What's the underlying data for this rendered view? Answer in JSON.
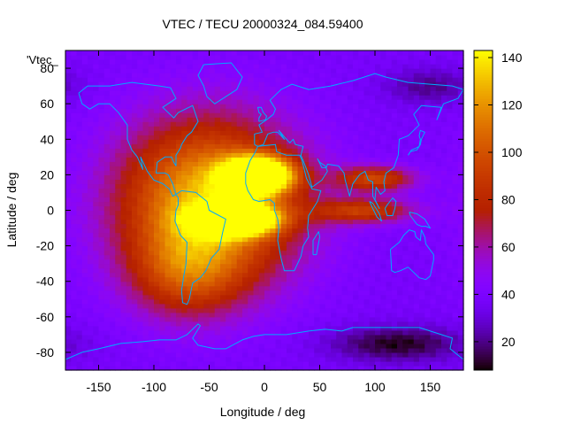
{
  "chart_data": {
    "type": "heatmap",
    "title": "VTEC / TECU 20000324_084.59400",
    "xlabel": "Longitude / deg",
    "ylabel": "Latitude / deg",
    "key_label": "'Vtec_",
    "xlim": [
      -180,
      180
    ],
    "ylim": [
      -90,
      90
    ],
    "xticks": [
      -150,
      -100,
      -50,
      0,
      50,
      100,
      150
    ],
    "yticks": [
      -80,
      -60,
      -40,
      -20,
      0,
      20,
      40,
      60,
      80
    ],
    "colorbar": {
      "range": [
        8,
        143
      ],
      "ticks": [
        20,
        40,
        60,
        80,
        100,
        120,
        140
      ],
      "palette": "black-purple-red-orange-yellow"
    },
    "grid": false,
    "background_level_tecu": 38,
    "features": [
      {
        "name": "subsolar crest north",
        "lon": -5,
        "lat": 20,
        "peak_tecu": 140,
        "lon_width": 30,
        "lat_width": 10
      },
      {
        "name": "equatorial crest south",
        "lon": -25,
        "lat": -5,
        "peak_tecu": 138,
        "lon_width": 35,
        "lat_width": 8
      },
      {
        "name": "broad dayside bulge",
        "lon": -50,
        "lat": 5,
        "peak_tecu": 95,
        "lon_width": 80,
        "lat_width": 45
      },
      {
        "name": "southern extension",
        "lon": -70,
        "lat": -35,
        "peak_tecu": 40,
        "lon_width": 50,
        "lat_width": 25
      },
      {
        "name": "indian ocean anomaly north",
        "lon": 100,
        "lat": 18,
        "peak_tecu": 55,
        "lon_width": 35,
        "lat_width": 7
      },
      {
        "name": "indian ocean anomaly south",
        "lon": 90,
        "lat": 0,
        "peak_tecu": 50,
        "lon_width": 45,
        "lat_width": 7
      },
      {
        "name": "antarctic trough",
        "lon": 120,
        "lat": -75,
        "peak_tecu": -28,
        "lon_width": 60,
        "lat_width": 10
      },
      {
        "name": "arctic trough",
        "lon": 150,
        "lat": 70,
        "peak_tecu": -18,
        "lon_width": 40,
        "lat_width": 10
      }
    ],
    "coastlines": [
      {
        "name": "North America",
        "lonlat": [
          [
            -168,
            66
          ],
          [
            -160,
            70
          ],
          [
            -140,
            70
          ],
          [
            -120,
            72
          ],
          [
            -95,
            70
          ],
          [
            -85,
            69
          ],
          [
            -80,
            63
          ],
          [
            -92,
            58
          ],
          [
            -82,
            52
          ],
          [
            -78,
            55
          ],
          [
            -65,
            59
          ],
          [
            -60,
            50
          ],
          [
            -66,
            44
          ],
          [
            -70,
            42
          ],
          [
            -75,
            37
          ],
          [
            -76,
            35
          ],
          [
            -80,
            31
          ],
          [
            -80,
            25
          ],
          [
            -82,
            27
          ],
          [
            -84,
            30
          ],
          [
            -90,
            30
          ],
          [
            -97,
            27
          ],
          [
            -98,
            21
          ],
          [
            -90,
            21
          ],
          [
            -87,
            20
          ],
          [
            -83,
            15
          ],
          [
            -80,
            9
          ],
          [
            -83,
            8
          ],
          [
            -86,
            12
          ],
          [
            -92,
            15
          ],
          [
            -100,
            17
          ],
          [
            -106,
            22
          ],
          [
            -112,
            30
          ],
          [
            -110,
            23
          ],
          [
            -115,
            30
          ],
          [
            -120,
            34
          ],
          [
            -124,
            40
          ],
          [
            -124,
            48
          ],
          [
            -132,
            55
          ],
          [
            -140,
            60
          ],
          [
            -150,
            60
          ],
          [
            -158,
            57
          ],
          [
            -165,
            60
          ],
          [
            -168,
            66
          ]
        ]
      },
      {
        "name": "Greenland",
        "lonlat": [
          [
            -55,
            82
          ],
          [
            -30,
            83
          ],
          [
            -20,
            75
          ],
          [
            -25,
            68
          ],
          [
            -40,
            62
          ],
          [
            -45,
            60
          ],
          [
            -52,
            64
          ],
          [
            -55,
            70
          ],
          [
            -60,
            76
          ],
          [
            -55,
            82
          ]
        ]
      },
      {
        "name": "South America",
        "lonlat": [
          [
            -80,
            9
          ],
          [
            -75,
            11
          ],
          [
            -62,
            10
          ],
          [
            -52,
            5
          ],
          [
            -50,
            0
          ],
          [
            -44,
            -2
          ],
          [
            -35,
            -5
          ],
          [
            -38,
            -13
          ],
          [
            -41,
            -22
          ],
          [
            -48,
            -27
          ],
          [
            -53,
            -34
          ],
          [
            -58,
            -38
          ],
          [
            -65,
            -41
          ],
          [
            -68,
            -50
          ],
          [
            -70,
            -53
          ],
          [
            -74,
            -52
          ],
          [
            -75,
            -45
          ],
          [
            -73,
            -37
          ],
          [
            -71,
            -30
          ],
          [
            -70,
            -18
          ],
          [
            -76,
            -14
          ],
          [
            -81,
            -6
          ],
          [
            -80,
            0
          ],
          [
            -78,
            3
          ],
          [
            -78,
            7
          ],
          [
            -80,
            9
          ]
        ]
      },
      {
        "name": "Eurasia",
        "lonlat": [
          [
            -9,
            37
          ],
          [
            -9,
            43
          ],
          [
            -2,
            44
          ],
          [
            -5,
            48
          ],
          [
            2,
            51
          ],
          [
            8,
            54
          ],
          [
            10,
            57
          ],
          [
            5,
            62
          ],
          [
            15,
            68
          ],
          [
            25,
            71
          ],
          [
            40,
            68
          ],
          [
            60,
            70
          ],
          [
            80,
            73
          ],
          [
            100,
            77
          ],
          [
            110,
            75
          ],
          [
            130,
            72
          ],
          [
            150,
            71
          ],
          [
            170,
            70
          ],
          [
            180,
            68
          ],
          [
            175,
            63
          ],
          [
            162,
            60
          ],
          [
            156,
            51
          ],
          [
            160,
            58
          ],
          [
            142,
            59
          ],
          [
            135,
            54
          ],
          [
            140,
            48
          ],
          [
            130,
            42
          ],
          [
            122,
            40
          ],
          [
            121,
            31
          ],
          [
            117,
            24
          ],
          [
            110,
            21
          ],
          [
            108,
            16
          ],
          [
            109,
            11
          ],
          [
            105,
            9
          ],
          [
            101,
            13
          ],
          [
            100,
            6
          ],
          [
            104,
            1
          ],
          [
            98,
            8
          ],
          [
            98,
            16
          ],
          [
            94,
            17
          ],
          [
            91,
            22
          ],
          [
            86,
            20
          ],
          [
            80,
            15
          ],
          [
            77,
            8
          ],
          [
            73,
            17
          ],
          [
            72,
            21
          ],
          [
            67,
            25
          ],
          [
            57,
            26
          ],
          [
            56,
            24
          ],
          [
            52,
            24
          ],
          [
            48,
            29
          ],
          [
            50,
            27
          ],
          [
            55,
            25
          ],
          [
            57,
            22
          ],
          [
            52,
            17
          ],
          [
            43,
            13
          ],
          [
            40,
            20
          ],
          [
            35,
            28
          ],
          [
            33,
            31
          ],
          [
            35,
            36
          ],
          [
            28,
            37
          ],
          [
            26,
            40
          ],
          [
            23,
            38
          ],
          [
            20,
            40
          ],
          [
            13,
            45
          ],
          [
            18,
            40
          ],
          [
            12,
            44
          ],
          [
            8,
            44
          ],
          [
            3,
            43
          ],
          [
            -1,
            37
          ],
          [
            -6,
            36
          ],
          [
            -9,
            37
          ]
        ]
      },
      {
        "name": "Africa",
        "lonlat": [
          [
            -17,
            21
          ],
          [
            -13,
            28
          ],
          [
            -9,
            32
          ],
          [
            -6,
            36
          ],
          [
            10,
            37
          ],
          [
            11,
            33
          ],
          [
            20,
            31
          ],
          [
            32,
            31
          ],
          [
            34,
            28
          ],
          [
            38,
            18
          ],
          [
            43,
            12
          ],
          [
            51,
            11
          ],
          [
            48,
            5
          ],
          [
            40,
            -3
          ],
          [
            39,
            -10
          ],
          [
            40,
            -15
          ],
          [
            35,
            -20
          ],
          [
            33,
            -26
          ],
          [
            27,
            -34
          ],
          [
            18,
            -34
          ],
          [
            15,
            -27
          ],
          [
            12,
            -17
          ],
          [
            13,
            -10
          ],
          [
            12,
            -5
          ],
          [
            9,
            0
          ],
          [
            9,
            4
          ],
          [
            5,
            6
          ],
          [
            -5,
            5
          ],
          [
            -10,
            6
          ],
          [
            -15,
            11
          ],
          [
            -17,
            15
          ],
          [
            -17,
            21
          ]
        ]
      },
      {
        "name": "Madagascar",
        "lonlat": [
          [
            44,
            -25
          ],
          [
            47,
            -25
          ],
          [
            50,
            -15
          ],
          [
            49,
            -12
          ],
          [
            44,
            -17
          ],
          [
            44,
            -25
          ]
        ]
      },
      {
        "name": "Australia",
        "lonlat": [
          [
            114,
            -22
          ],
          [
            115,
            -34
          ],
          [
            118,
            -35
          ],
          [
            123,
            -34
          ],
          [
            130,
            -32
          ],
          [
            135,
            -35
          ],
          [
            140,
            -38
          ],
          [
            146,
            -39
          ],
          [
            150,
            -37
          ],
          [
            153,
            -28
          ],
          [
            153,
            -25
          ],
          [
            146,
            -19
          ],
          [
            145,
            -15
          ],
          [
            142,
            -11
          ],
          [
            141,
            -17
          ],
          [
            137,
            -15
          ],
          [
            136,
            -12
          ],
          [
            131,
            -11
          ],
          [
            126,
            -14
          ],
          [
            122,
            -18
          ],
          [
            114,
            -22
          ]
        ]
      },
      {
        "name": "Japan",
        "lonlat": [
          [
            130,
            31
          ],
          [
            133,
            34
          ],
          [
            137,
            35
          ],
          [
            140,
            36
          ],
          [
            141,
            40
          ],
          [
            140,
            42
          ],
          [
            141,
            45
          ],
          [
            145,
            44
          ],
          [
            142,
            40
          ],
          [
            141,
            37
          ],
          [
            138,
            34
          ],
          [
            132,
            33
          ],
          [
            130,
            31
          ]
        ]
      },
      {
        "name": "Borneo",
        "lonlat": [
          [
            109,
            1
          ],
          [
            111,
            3
          ],
          [
            116,
            7
          ],
          [
            119,
            5
          ],
          [
            118,
            1
          ],
          [
            116,
            -3
          ],
          [
            111,
            -3
          ],
          [
            109,
            1
          ]
        ]
      },
      {
        "name": "Sumatra",
        "lonlat": [
          [
            95,
            5
          ],
          [
            98,
            4
          ],
          [
            104,
            -2
          ],
          [
            106,
            -6
          ],
          [
            102,
            -4
          ],
          [
            98,
            1
          ],
          [
            95,
            5
          ]
        ]
      },
      {
        "name": "New Guinea",
        "lonlat": [
          [
            131,
            -1
          ],
          [
            138,
            -2
          ],
          [
            145,
            -5
          ],
          [
            150,
            -10
          ],
          [
            146,
            -9
          ],
          [
            142,
            -9
          ],
          [
            138,
            -8
          ],
          [
            132,
            -3
          ],
          [
            131,
            -1
          ]
        ]
      },
      {
        "name": "Britain",
        "lonlat": [
          [
            -5,
            50
          ],
          [
            1,
            51
          ],
          [
            2,
            53
          ],
          [
            -1,
            55
          ],
          [
            -3,
            58
          ],
          [
            -6,
            58
          ],
          [
            -5,
            55
          ],
          [
            -3,
            54
          ],
          [
            -5,
            52
          ],
          [
            -5,
            50
          ]
        ]
      },
      {
        "name": "Antarctica",
        "lonlat": [
          [
            -180,
            -84
          ],
          [
            -165,
            -80
          ],
          [
            -150,
            -78
          ],
          [
            -130,
            -75
          ],
          [
            -110,
            -74
          ],
          [
            -95,
            -73
          ],
          [
            -80,
            -73
          ],
          [
            -70,
            -70
          ],
          [
            -60,
            -64
          ],
          [
            -58,
            -65
          ],
          [
            -65,
            -72
          ],
          [
            -60,
            -76
          ],
          [
            -45,
            -78
          ],
          [
            -35,
            -78
          ],
          [
            -20,
            -73
          ],
          [
            -10,
            -71
          ],
          [
            0,
            -70
          ],
          [
            20,
            -70
          ],
          [
            40,
            -68
          ],
          [
            55,
            -67
          ],
          [
            70,
            -68
          ],
          [
            80,
            -66
          ],
          [
            100,
            -66
          ],
          [
            120,
            -66
          ],
          [
            140,
            -66
          ],
          [
            160,
            -70
          ],
          [
            170,
            -72
          ],
          [
            168,
            -78
          ],
          [
            180,
            -84
          ]
        ]
      }
    ]
  }
}
